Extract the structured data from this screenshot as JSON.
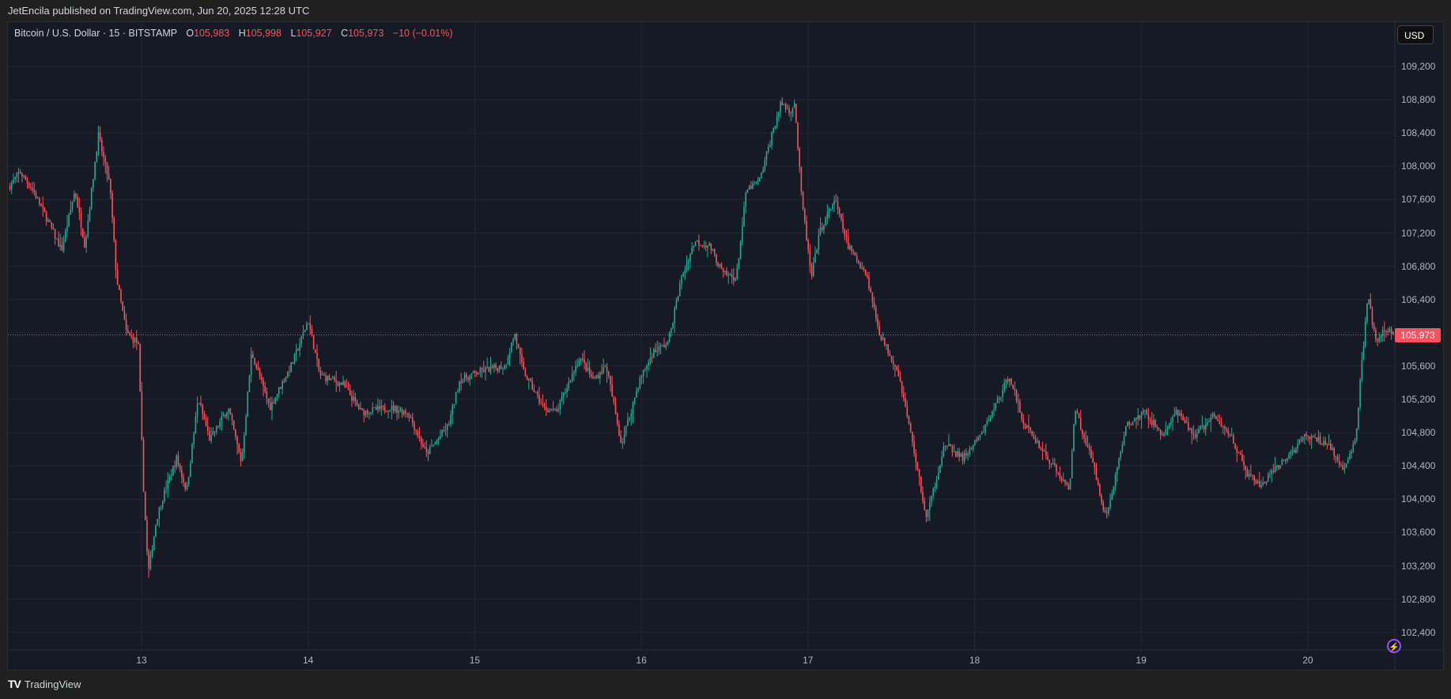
{
  "header": {
    "published": "JetEncila published on TradingView.com, Jun 20, 2025 12:28 UTC"
  },
  "legend": {
    "symbol": "Bitcoin / U.S. Dollar · 15 · BITSTAMP",
    "o_label": "O",
    "o": "105,983",
    "h_label": "H",
    "h": "105,998",
    "l_label": "L",
    "l": "105,927",
    "c_label": "C",
    "c": "105,973",
    "change": "−10 (−0.01%)"
  },
  "currency_button": "USD",
  "last_price_label": "105,973",
  "footer": {
    "brand": "TradingView"
  },
  "colors": {
    "up": "#22ab94",
    "down": "#f7525f",
    "background": "#161a25",
    "grid": "#232733"
  },
  "chart_data": {
    "type": "candlestick",
    "title": "Bitcoin / U.S. Dollar · 15 · BITSTAMP",
    "interval_minutes": 15,
    "last_price": 105973,
    "ylim": [
      102100,
      109600
    ],
    "y_ticks": [
      "109,200",
      "108,800",
      "108,400",
      "108,000",
      "107,600",
      "107,200",
      "106,800",
      "106,400",
      "106,000",
      "105,600",
      "105,200",
      "104,800",
      "104,400",
      "104,000",
      "103,600",
      "103,200",
      "102,800",
      "102,400"
    ],
    "y_tick_values": [
      109200,
      108800,
      108400,
      108000,
      107600,
      107200,
      106800,
      106400,
      106000,
      105600,
      105200,
      104800,
      104400,
      104000,
      103600,
      103200,
      102800,
      102400
    ],
    "x_ticks": [
      "13",
      "14",
      "15",
      "16",
      "17",
      "18",
      "19",
      "20"
    ],
    "x_tick_values": [
      13,
      14,
      15,
      16,
      17,
      18,
      19,
      20
    ],
    "xlim_days": [
      12.2,
      20.56
    ],
    "price_path_day_close": [
      [
        12.21,
        107767
      ],
      [
        12.27,
        107933
      ],
      [
        12.35,
        107711
      ],
      [
        12.43,
        107378
      ],
      [
        12.52,
        106989
      ],
      [
        12.6,
        107711
      ],
      [
        12.66,
        107044
      ],
      [
        12.74,
        108378
      ],
      [
        12.81,
        107767
      ],
      [
        12.85,
        106656
      ],
      [
        12.91,
        105989
      ],
      [
        12.98,
        105878
      ],
      [
        13.01,
        104211
      ],
      [
        13.04,
        103100
      ],
      [
        13.09,
        103767
      ],
      [
        13.14,
        104100
      ],
      [
        13.21,
        104489
      ],
      [
        13.27,
        104100
      ],
      [
        13.34,
        105211
      ],
      [
        13.41,
        104711
      ],
      [
        13.52,
        105100
      ],
      [
        13.6,
        104433
      ],
      [
        13.66,
        105767
      ],
      [
        13.77,
        105100
      ],
      [
        13.91,
        105656
      ],
      [
        14.0,
        106156
      ],
      [
        14.07,
        105489
      ],
      [
        14.21,
        105378
      ],
      [
        14.32,
        105044
      ],
      [
        14.49,
        105100
      ],
      [
        14.6,
        105044
      ],
      [
        14.71,
        104544
      ],
      [
        14.84,
        104878
      ],
      [
        14.91,
        105433
      ],
      [
        15.04,
        105544
      ],
      [
        15.18,
        105600
      ],
      [
        15.24,
        105989
      ],
      [
        15.29,
        105544
      ],
      [
        15.41,
        105100
      ],
      [
        15.49,
        105044
      ],
      [
        15.63,
        105711
      ],
      [
        15.71,
        105433
      ],
      [
        15.79,
        105600
      ],
      [
        15.88,
        104656
      ],
      [
        15.99,
        105433
      ],
      [
        16.07,
        105767
      ],
      [
        16.16,
        105878
      ],
      [
        16.24,
        106656
      ],
      [
        16.32,
        107100
      ],
      [
        16.41,
        107044
      ],
      [
        16.49,
        106711
      ],
      [
        16.57,
        106656
      ],
      [
        16.63,
        107711
      ],
      [
        16.71,
        107822
      ],
      [
        16.79,
        108433
      ],
      [
        16.84,
        108767
      ],
      [
        16.89,
        108656
      ],
      [
        16.92,
        108767
      ],
      [
        16.96,
        107656
      ],
      [
        17.02,
        106656
      ],
      [
        17.07,
        107211
      ],
      [
        17.16,
        107600
      ],
      [
        17.24,
        107044
      ],
      [
        17.35,
        106711
      ],
      [
        17.43,
        105989
      ],
      [
        17.54,
        105544
      ],
      [
        17.63,
        104656
      ],
      [
        17.71,
        103767
      ],
      [
        17.82,
        104656
      ],
      [
        17.93,
        104489
      ],
      [
        18.04,
        104767
      ],
      [
        18.21,
        105489
      ],
      [
        18.29,
        104933
      ],
      [
        18.46,
        104433
      ],
      [
        18.57,
        104100
      ],
      [
        18.6,
        105100
      ],
      [
        18.71,
        104433
      ],
      [
        18.79,
        103767
      ],
      [
        18.91,
        104878
      ],
      [
        19.02,
        105044
      ],
      [
        19.13,
        104767
      ],
      [
        19.21,
        105044
      ],
      [
        19.32,
        104767
      ],
      [
        19.43,
        104989
      ],
      [
        19.54,
        104767
      ],
      [
        19.63,
        104322
      ],
      [
        19.71,
        104156
      ],
      [
        19.82,
        104378
      ],
      [
        19.99,
        104767
      ],
      [
        20.13,
        104656
      ],
      [
        20.21,
        104322
      ],
      [
        20.29,
        104767
      ],
      [
        20.32,
        105544
      ],
      [
        20.36,
        106433
      ],
      [
        20.41,
        105878
      ],
      [
        20.47,
        106044
      ],
      [
        20.52,
        105973
      ]
    ]
  }
}
